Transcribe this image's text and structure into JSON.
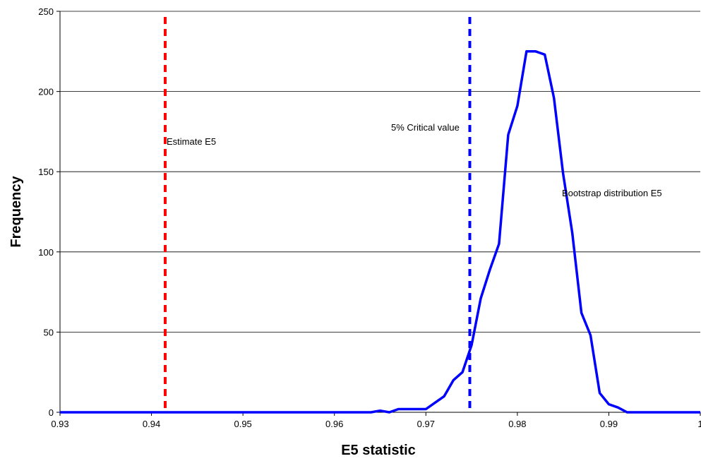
{
  "chart_data": {
    "type": "line",
    "title": "",
    "xlabel": "E5 statistic",
    "ylabel": "Frequency",
    "xlim": [
      0.93,
      1.0
    ],
    "ylim": [
      0,
      250
    ],
    "x_ticks": [
      "0.93",
      "0.94",
      "0.95",
      "0.96",
      "0.97",
      "0.98",
      "0.99",
      "1"
    ],
    "x_tick_values": [
      0.93,
      0.94,
      0.95,
      0.96,
      0.97,
      0.98,
      0.99,
      1.0
    ],
    "y_ticks": [
      "0",
      "50",
      "100",
      "150",
      "200",
      "250"
    ],
    "y_tick_values": [
      0,
      50,
      100,
      150,
      200,
      250
    ],
    "grid": "horizontal",
    "series": [
      {
        "color": "#0000ff",
        "x": [
          0.93,
          0.964,
          0.965,
          0.966,
          0.967,
          0.968,
          0.969,
          0.97,
          0.971,
          0.972,
          0.973,
          0.974,
          0.975,
          0.976,
          0.977,
          0.978,
          0.979,
          0.98,
          0.981,
          0.982,
          0.983,
          0.984,
          0.985,
          0.986,
          0.987,
          0.988,
          0.989,
          0.99,
          0.991,
          0.992,
          0.993,
          1.0
        ],
        "y": [
          0,
          0,
          1,
          0,
          2,
          2,
          2,
          2,
          6,
          10,
          20,
          25,
          42,
          71,
          89,
          105,
          173,
          191,
          225,
          225,
          223,
          196,
          149,
          112,
          62,
          48,
          12,
          5,
          3,
          0,
          0,
          0
        ]
      }
    ],
    "vertical_lines": [
      {
        "x": 0.9415,
        "color": "#ff0000",
        "style": "dashed",
        "label": "Estimate E5"
      },
      {
        "x": 0.9748,
        "color": "#0000ff",
        "style": "dashed",
        "label": "5% Critical value"
      }
    ],
    "annotations": [
      {
        "text": "Bootstrap distribution E5"
      }
    ]
  }
}
